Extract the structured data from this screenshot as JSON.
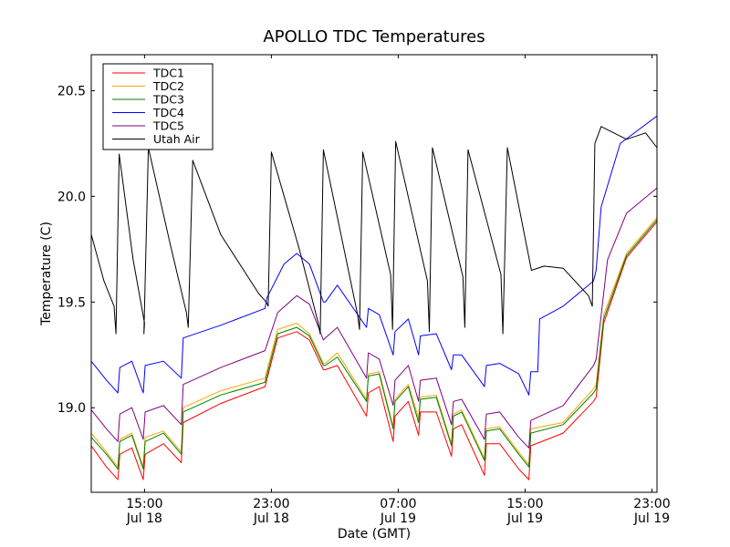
{
  "chart_data": {
    "type": "line",
    "title": "APOLLO TDC Temperatures",
    "xlabel": "Date (GMT)",
    "ylabel": "Temperature (C)",
    "xlim_hours": [
      -4.2,
      40.4
    ],
    "ylim": [
      18.6,
      20.67
    ],
    "grid": false,
    "legend_position": "top-left",
    "x_ticks": [
      {
        "hour": 0,
        "time": "15:00",
        "date": "Jul 18"
      },
      {
        "hour": 10,
        "time": "23:00",
        "date": "Jul 18"
      },
      {
        "hour": 20,
        "time": "07:00",
        "date": "Jul 19"
      },
      {
        "hour": 30,
        "time": "15:00",
        "date": "Jul 19"
      },
      {
        "hour": 40,
        "time": "23:00",
        "date": "Jul 19"
      }
    ],
    "y_ticks": [
      {
        "value": 19.0,
        "label": "19.0"
      },
      {
        "value": 19.5,
        "label": "19.5"
      },
      {
        "value": 20.0,
        "label": "20.0"
      },
      {
        "value": 20.5,
        "label": "20.5"
      }
    ],
    "series": [
      {
        "name": "TDC1",
        "color": "#ff0000",
        "x": [
          -4.2,
          -3.0,
          -2.1,
          -1.95,
          -1.0,
          -0.1,
          0.05,
          1.5,
          2.9,
          3.05,
          6.0,
          9.5,
          10.5,
          12.0,
          13.0,
          14.1,
          14.25,
          15.2,
          17.5,
          17.65,
          18.5,
          19.6,
          19.75,
          20.8,
          21.6,
          21.75,
          23.0,
          24.2,
          24.35,
          25.0,
          26.8,
          26.95,
          28.0,
          29.5,
          30.3,
          30.45,
          33.0,
          35.4,
          35.6,
          36.2,
          38.0,
          40.4
        ],
        "values": [
          18.82,
          18.72,
          18.66,
          18.78,
          18.81,
          18.66,
          18.78,
          18.83,
          18.74,
          18.93,
          19.02,
          19.1,
          19.33,
          19.36,
          19.32,
          19.18,
          19.18,
          19.2,
          18.96,
          19.07,
          19.1,
          18.84,
          18.96,
          19.03,
          18.87,
          18.98,
          18.98,
          18.77,
          18.9,
          18.92,
          18.68,
          18.83,
          18.83,
          18.71,
          18.66,
          18.82,
          18.88,
          19.03,
          19.05,
          19.4,
          19.71,
          19.88
        ]
      },
      {
        "name": "TDC2",
        "color": "#ffa500",
        "x": [
          -4.2,
          -3.0,
          -2.1,
          -1.95,
          -1.0,
          -0.1,
          0.05,
          1.5,
          2.9,
          3.05,
          6.0,
          9.5,
          10.5,
          12.0,
          13.0,
          14.1,
          14.25,
          15.2,
          17.5,
          17.65,
          18.5,
          19.6,
          19.75,
          20.8,
          21.6,
          21.75,
          23.0,
          24.2,
          24.35,
          25.0,
          26.8,
          26.95,
          28.0,
          29.5,
          30.3,
          30.45,
          33.0,
          35.4,
          35.6,
          36.2,
          38.0,
          40.4
        ],
        "values": [
          18.88,
          18.79,
          18.72,
          18.85,
          18.88,
          18.72,
          18.86,
          18.89,
          18.79,
          19.0,
          19.08,
          19.14,
          19.37,
          19.4,
          19.35,
          19.21,
          19.21,
          19.26,
          19.04,
          19.16,
          19.17,
          18.91,
          19.04,
          19.11,
          18.95,
          19.05,
          19.06,
          18.83,
          18.97,
          18.99,
          18.76,
          18.9,
          18.91,
          18.79,
          18.73,
          18.9,
          18.93,
          19.09,
          19.11,
          19.44,
          19.73,
          19.9
        ]
      },
      {
        "name": "TDC3",
        "color": "#008000",
        "x": [
          -4.2,
          -3.0,
          -2.1,
          -1.95,
          -1.0,
          -0.1,
          0.05,
          1.5,
          2.9,
          3.05,
          6.0,
          9.5,
          10.5,
          12.0,
          13.0,
          14.1,
          14.25,
          15.2,
          17.5,
          17.65,
          18.5,
          19.6,
          19.75,
          20.8,
          21.6,
          21.75,
          23.0,
          24.2,
          24.35,
          25.0,
          26.8,
          26.95,
          28.0,
          29.5,
          30.3,
          30.45,
          33.0,
          35.4,
          35.6,
          36.2,
          38.0,
          40.4
        ],
        "values": [
          18.86,
          18.78,
          18.71,
          18.84,
          18.87,
          18.71,
          18.84,
          18.88,
          18.78,
          18.98,
          19.06,
          19.12,
          19.35,
          19.38,
          19.34,
          19.2,
          19.2,
          19.24,
          19.03,
          19.15,
          19.16,
          18.9,
          19.03,
          19.1,
          18.93,
          19.04,
          19.05,
          18.82,
          18.96,
          18.98,
          18.75,
          18.89,
          18.9,
          18.78,
          18.72,
          18.88,
          18.92,
          19.07,
          19.09,
          19.42,
          19.72,
          19.89
        ]
      },
      {
        "name": "TDC4",
        "color": "#0000ff",
        "x": [
          -4.2,
          -3.0,
          -2.1,
          -1.95,
          -1.0,
          -0.1,
          0.05,
          1.5,
          2.9,
          3.05,
          6.0,
          9.5,
          9.65,
          11.0,
          12.0,
          13.0,
          14.1,
          14.25,
          15.2,
          17.5,
          17.65,
          18.5,
          19.6,
          19.75,
          20.8,
          21.6,
          21.75,
          23.0,
          24.2,
          24.35,
          25.0,
          26.8,
          26.95,
          28.0,
          29.5,
          30.3,
          30.45,
          31.0,
          31.15,
          33.0,
          35.4,
          35.6,
          36.0,
          37.5,
          40.4
        ],
        "values": [
          19.22,
          19.13,
          19.07,
          19.19,
          19.22,
          19.07,
          19.2,
          19.22,
          19.14,
          19.33,
          19.39,
          19.47,
          19.52,
          19.68,
          19.73,
          19.68,
          19.5,
          19.5,
          19.58,
          19.38,
          19.47,
          19.44,
          19.25,
          19.36,
          19.42,
          19.25,
          19.34,
          19.35,
          19.18,
          19.25,
          19.25,
          19.1,
          19.2,
          19.21,
          19.16,
          19.06,
          19.17,
          19.17,
          19.42,
          19.48,
          19.6,
          19.65,
          19.95,
          20.25,
          20.38
        ]
      },
      {
        "name": "TDC5",
        "color": "#800080",
        "x": [
          -4.2,
          -3.0,
          -2.1,
          -1.95,
          -1.0,
          -0.1,
          0.05,
          1.5,
          2.9,
          3.05,
          6.0,
          9.5,
          10.5,
          12.0,
          13.0,
          14.1,
          14.25,
          15.2,
          17.5,
          17.65,
          18.5,
          19.6,
          19.75,
          20.8,
          21.6,
          21.75,
          23.0,
          24.2,
          24.35,
          25.0,
          26.8,
          26.95,
          28.0,
          29.5,
          30.3,
          30.45,
          33.0,
          35.4,
          35.6,
          36.5,
          38.0,
          40.4
        ],
        "values": [
          18.99,
          18.9,
          18.84,
          18.97,
          19.0,
          18.85,
          18.98,
          19.01,
          18.92,
          19.11,
          19.19,
          19.27,
          19.45,
          19.53,
          19.49,
          19.32,
          19.33,
          19.38,
          19.14,
          19.26,
          19.23,
          19.01,
          19.13,
          19.2,
          19.03,
          19.13,
          19.14,
          18.92,
          19.03,
          19.04,
          18.85,
          18.97,
          18.98,
          18.86,
          18.81,
          18.94,
          19.01,
          19.2,
          19.23,
          19.7,
          19.92,
          20.04
        ]
      },
      {
        "name": "Utah Air",
        "color": "#000000",
        "x": [
          -4.2,
          -3.2,
          -2.4,
          -2.25,
          -2.0,
          -0.9,
          0.0,
          -0.05,
          0.3,
          2.0,
          3.3,
          3.45,
          3.8,
          6.0,
          9.0,
          9.6,
          9.75,
          10.0,
          12.2,
          13.7,
          13.85,
          14.1,
          16.8,
          16.95,
          17.2,
          19.4,
          19.55,
          19.8,
          22.3,
          22.45,
          22.7,
          25.1,
          25.25,
          25.5,
          28.1,
          28.25,
          28.6,
          30.5,
          31.5,
          33.0,
          35.0,
          35.3,
          35.5,
          36.0,
          38.0,
          39.5,
          40.4
        ],
        "values": [
          19.82,
          19.6,
          19.48,
          19.35,
          20.2,
          19.7,
          19.4,
          19.35,
          20.23,
          19.78,
          19.45,
          19.38,
          20.17,
          19.82,
          19.54,
          19.5,
          19.48,
          20.21,
          19.75,
          19.4,
          19.35,
          20.22,
          19.44,
          19.37,
          20.21,
          19.63,
          19.37,
          20.26,
          19.6,
          19.36,
          20.23,
          19.62,
          19.38,
          20.22,
          19.63,
          19.35,
          20.23,
          19.65,
          19.67,
          19.66,
          19.53,
          19.48,
          20.25,
          20.33,
          20.27,
          20.3,
          20.23
        ]
      }
    ]
  }
}
